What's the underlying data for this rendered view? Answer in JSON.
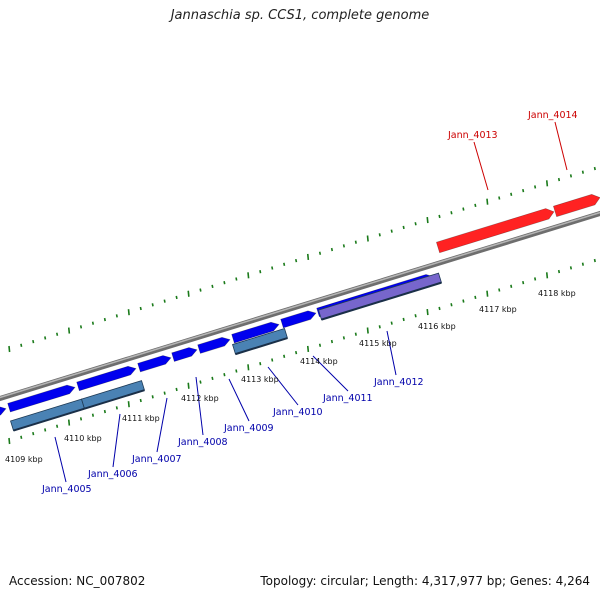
{
  "title": "Jannaschia sp. CCS1, complete genome",
  "footer": {
    "accession": "Accession: NC_007802",
    "summary": "Topology: circular; Length: 4,317,977 bp; Genes: 4,264"
  },
  "colors": {
    "backbone": "#808080",
    "forward_gene": "#0000ee",
    "forward_gene_highlight": "#ff2222",
    "reverse_gene": "#4a82b4",
    "reverse_gene_alt": "#7766cc",
    "tick": "#1a7a1a",
    "label_blue": "#0000aa",
    "label_red": "#cc0000"
  },
  "scale": {
    "tick_labels": [
      "4109 kbp",
      "4110 kbp",
      "4111 kbp",
      "4112 kbp",
      "4113 kbp",
      "4114 kbp",
      "4115 kbp",
      "4116 kbp",
      "4117 kbp",
      "4118 kbp"
    ]
  },
  "genes": [
    {
      "id": "Jann_4005",
      "strand": "reverse",
      "color": "reverse_gene"
    },
    {
      "id": "Jann_4006",
      "strand": "reverse",
      "color": "reverse_gene"
    },
    {
      "id": "Jann_4007",
      "strand": "forward",
      "color": "forward_gene"
    },
    {
      "id": "Jann_4008",
      "strand": "forward",
      "color": "forward_gene"
    },
    {
      "id": "Jann_4009",
      "strand": "forward",
      "color": "forward_gene"
    },
    {
      "id": "Jann_4010",
      "strand": "reverse",
      "color": "reverse_gene"
    },
    {
      "id": "Jann_4011",
      "strand": "forward",
      "color": "forward_gene"
    },
    {
      "id": "Jann_4012",
      "strand": "reverse",
      "color": "reverse_gene_alt"
    },
    {
      "id": "Jann_4013",
      "strand": "forward",
      "color": "forward_gene_highlight"
    },
    {
      "id": "Jann_4014",
      "strand": "forward",
      "color": "forward_gene_highlight"
    }
  ]
}
